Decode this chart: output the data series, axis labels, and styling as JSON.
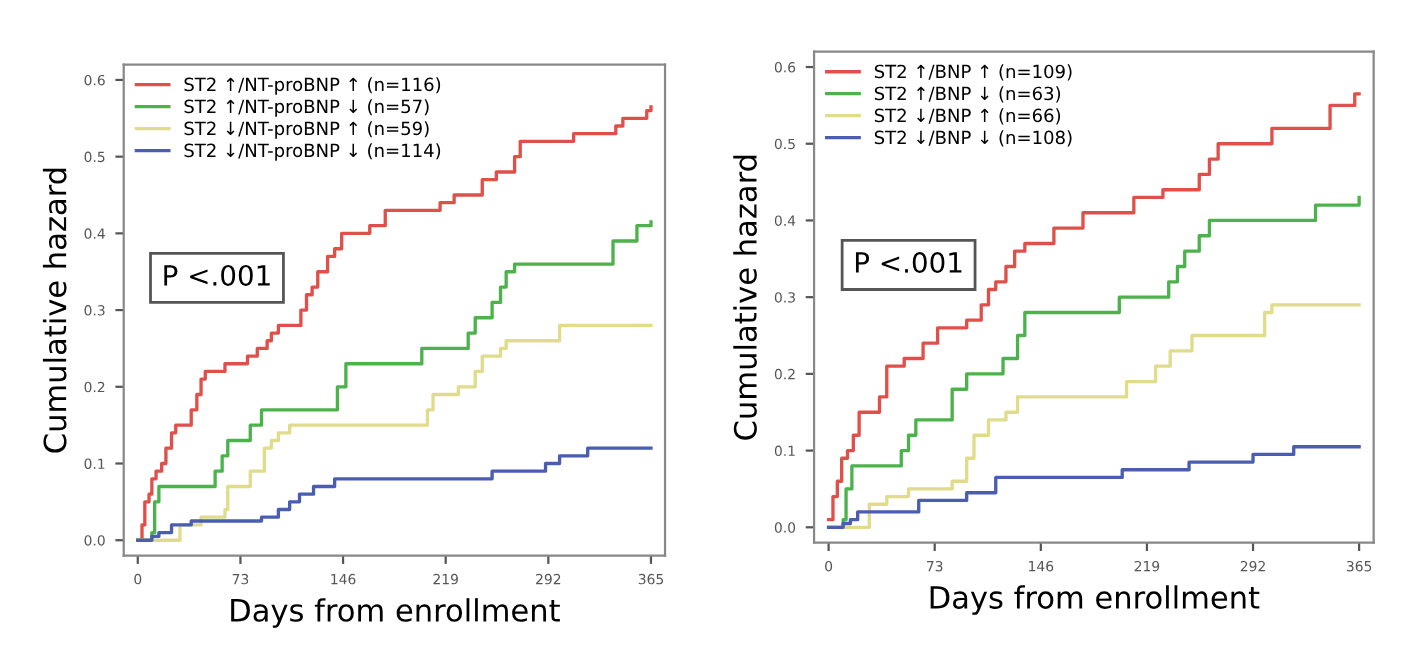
{
  "chart_data": [
    {
      "type": "step",
      "xlabel": "Days from enrollment",
      "ylabel": "Cumulative hazard",
      "annotations": [
        "P <.001"
      ],
      "legend": "top left",
      "xlim": [
        -10,
        375
      ],
      "xticks": [
        0,
        73,
        146,
        219,
        292,
        365
      ],
      "ylim": [
        -0.02,
        0.62
      ],
      "yticks": [
        {
          "value": 0,
          "label": "0.0"
        },
        {
          "value": 0.1,
          "label": "0.1"
        },
        {
          "value": 0.2,
          "label": "0.2"
        },
        {
          "value": 0.3,
          "label": "0.3"
        },
        {
          "value": 0.4,
          "label": "0.4"
        },
        {
          "value": 0.5,
          "label": "0.5"
        },
        {
          "value": 0.6,
          "label": "0.6"
        }
      ],
      "series": [
        {
          "name": "ST2 ↑/NT-proBNP ↑ (n=116)",
          "color": "#e0504a",
          "x": [
            0,
            3,
            5,
            8,
            10,
            13,
            17,
            20,
            24,
            27,
            38,
            42,
            45,
            48,
            62,
            78,
            85,
            92,
            95,
            100,
            116,
            120,
            124,
            128,
            135,
            140,
            145,
            165,
            176,
            215,
            225,
            245,
            255,
            268,
            272,
            300,
            310,
            340,
            345,
            362,
            365
          ],
          "values": [
            0,
            0.02,
            0.05,
            0.06,
            0.08,
            0.09,
            0.1,
            0.12,
            0.14,
            0.15,
            0.17,
            0.19,
            0.21,
            0.22,
            0.23,
            0.24,
            0.25,
            0.26,
            0.27,
            0.28,
            0.3,
            0.32,
            0.33,
            0.35,
            0.37,
            0.38,
            0.4,
            0.41,
            0.43,
            0.44,
            0.45,
            0.47,
            0.48,
            0.5,
            0.52,
            0.52,
            0.53,
            0.54,
            0.55,
            0.56,
            0.565
          ]
        },
        {
          "name": "ST2 ↑/NT-proBNP ↓ (n=57)",
          "color": "#4cb34c",
          "x": [
            0,
            10,
            12,
            15,
            55,
            60,
            64,
            80,
            88,
            142,
            148,
            202,
            235,
            240,
            252,
            258,
            262,
            268,
            338,
            355,
            365
          ],
          "values": [
            0,
            0.01,
            0.05,
            0.07,
            0.09,
            0.11,
            0.13,
            0.15,
            0.17,
            0.2,
            0.23,
            0.25,
            0.27,
            0.29,
            0.31,
            0.33,
            0.35,
            0.36,
            0.39,
            0.41,
            0.415
          ]
        },
        {
          "name": "ST2 ↓/NT-proBNP ↑ (n=59)",
          "color": "#e0dc8c",
          "x": [
            0,
            30,
            45,
            62,
            64,
            80,
            90,
            95,
            100,
            108,
            206,
            210,
            228,
            240,
            245,
            258,
            262,
            300,
            365
          ],
          "values": [
            0,
            0.02,
            0.03,
            0.04,
            0.07,
            0.09,
            0.12,
            0.13,
            0.14,
            0.15,
            0.17,
            0.19,
            0.2,
            0.22,
            0.24,
            0.25,
            0.26,
            0.28,
            0.28
          ]
        },
        {
          "name": "ST2 ↓/NT-proBNP ↓ (n=114)",
          "color": "#4a5db0",
          "x": [
            0,
            10,
            15,
            24,
            38,
            88,
            100,
            108,
            115,
            125,
            140,
            252,
            290,
            300,
            320,
            365
          ],
          "values": [
            0,
            0.005,
            0.01,
            0.02,
            0.025,
            0.03,
            0.04,
            0.05,
            0.06,
            0.07,
            0.08,
            0.09,
            0.1,
            0.11,
            0.12,
            0.12
          ]
        }
      ]
    },
    {
      "type": "step",
      "xlabel": "Days from enrollment",
      "ylabel": "Cumulative hazard",
      "annotations": [
        "P <.001"
      ],
      "legend": "top left",
      "xlim": [
        -10,
        375
      ],
      "xticks": [
        0,
        73,
        146,
        219,
        292,
        365
      ],
      "ylim": [
        -0.02,
        0.62
      ],
      "yticks": [
        {
          "value": 0,
          "label": "0.0"
        },
        {
          "value": 0.1,
          "label": "0.1"
        },
        {
          "value": 0.2,
          "label": "0.2"
        },
        {
          "value": 0.3,
          "label": "0.3"
        },
        {
          "value": 0.4,
          "label": "0.4"
        },
        {
          "value": 0.5,
          "label": "0.5"
        },
        {
          "value": 0.6,
          "label": "0.6"
        }
      ],
      "series": [
        {
          "name": "ST2 ↑/BNP ↑ (n=109)",
          "color": "#e0504a",
          "x": [
            0,
            3,
            6,
            9,
            13,
            17,
            21,
            35,
            40,
            52,
            65,
            75,
            95,
            105,
            110,
            115,
            122,
            128,
            135,
            155,
            175,
            210,
            230,
            255,
            262,
            268,
            305,
            345,
            362,
            365
          ],
          "values": [
            0.01,
            0.04,
            0.06,
            0.09,
            0.1,
            0.12,
            0.15,
            0.17,
            0.21,
            0.22,
            0.24,
            0.26,
            0.27,
            0.29,
            0.31,
            0.32,
            0.34,
            0.36,
            0.37,
            0.39,
            0.41,
            0.43,
            0.44,
            0.46,
            0.48,
            0.5,
            0.52,
            0.55,
            0.565,
            0.565
          ]
        },
        {
          "name": "ST2 ↑/BNP ↓ (n=63)",
          "color": "#4cb34c",
          "x": [
            0,
            10,
            12,
            16,
            50,
            55,
            60,
            85,
            95,
            120,
            130,
            135,
            200,
            234,
            240,
            245,
            255,
            262,
            335,
            365
          ],
          "values": [
            0,
            0.01,
            0.05,
            0.08,
            0.1,
            0.12,
            0.14,
            0.18,
            0.2,
            0.22,
            0.25,
            0.28,
            0.3,
            0.32,
            0.34,
            0.36,
            0.38,
            0.4,
            0.42,
            0.43
          ]
        },
        {
          "name": "ST2 ↓/BNP ↑ (n=66)",
          "color": "#e0dc8c",
          "x": [
            0,
            28,
            40,
            55,
            85,
            95,
            100,
            110,
            122,
            130,
            205,
            225,
            235,
            250,
            300,
            305,
            365
          ],
          "values": [
            0,
            0.03,
            0.04,
            0.05,
            0.06,
            0.09,
            0.12,
            0.14,
            0.15,
            0.17,
            0.19,
            0.21,
            0.23,
            0.25,
            0.28,
            0.29,
            0.29
          ]
        },
        {
          "name": "ST2 ↓/BNP ↓ (n=108)",
          "color": "#4a5db0",
          "x": [
            0,
            10,
            15,
            20,
            62,
            95,
            115,
            202,
            248,
            292,
            320,
            365
          ],
          "values": [
            0,
            0.005,
            0.01,
            0.02,
            0.035,
            0.045,
            0.065,
            0.075,
            0.085,
            0.095,
            0.105,
            0.105
          ]
        }
      ]
    }
  ]
}
